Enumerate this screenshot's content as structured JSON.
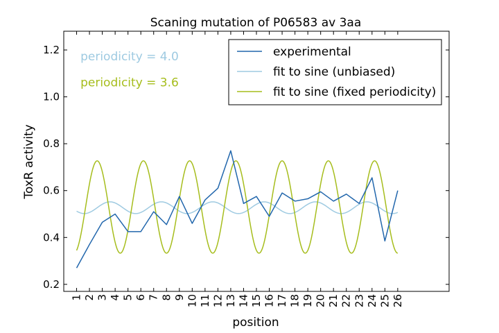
{
  "chart_data": {
    "type": "line",
    "title": "Scaning mutation of P06583 av 3aa",
    "xlabel": "position",
    "ylabel": "ToxR activity",
    "xlim": [
      0,
      30
    ],
    "ylim": [
      0.17,
      1.28
    ],
    "x_ticks": [
      1,
      2,
      3,
      4,
      5,
      6,
      7,
      8,
      9,
      10,
      11,
      12,
      13,
      14,
      15,
      16,
      17,
      18,
      19,
      20,
      21,
      22,
      23,
      24,
      25,
      26
    ],
    "y_ticks": [
      0.2,
      0.4,
      0.6,
      0.8,
      1.0,
      1.2
    ],
    "y_tick_labels": [
      "0.2",
      "0.4",
      "0.6",
      "0.8",
      "1.0",
      "1.2"
    ],
    "grid": false,
    "legend_position": "top-right",
    "series": [
      {
        "name": "experimental",
        "kind": "points",
        "color": "#2166ac",
        "x": [
          1,
          2,
          3,
          4,
          5,
          6,
          7,
          8,
          9,
          10,
          11,
          12,
          13,
          14,
          15,
          16,
          17,
          18,
          19,
          20,
          21,
          22,
          23,
          24,
          25,
          26
        ],
        "y": [
          0.27,
          0.37,
          0.465,
          0.5,
          0.425,
          0.425,
          0.51,
          0.455,
          0.575,
          0.46,
          0.56,
          0.61,
          0.77,
          0.545,
          0.575,
          0.49,
          0.59,
          0.555,
          0.565,
          0.595,
          0.555,
          0.585,
          0.545,
          0.655,
          0.385,
          0.6
        ]
      },
      {
        "name": "fit to sine (unbiased)",
        "kind": "sine",
        "color": "#9ecae1",
        "mean": 0.527,
        "amplitude": 0.025,
        "period": 4.0,
        "peak_x": 3.6,
        "x_range": [
          1,
          26
        ]
      },
      {
        "name": "fit to sine (fixed periodicity)",
        "kind": "sine",
        "color": "#a6bd1c",
        "mean": 0.53,
        "amplitude": 0.197,
        "period": 3.6,
        "peak_x": 2.6,
        "x_range": [
          1,
          26
        ]
      }
    ],
    "annotations": [
      {
        "text": "periodicity = 4.0",
        "color": "#9ecae1",
        "x": 1.3,
        "y": 1.17
      },
      {
        "text": "periodicity = 3.6",
        "color": "#a6bd1c",
        "x": 1.3,
        "y": 1.06
      }
    ]
  }
}
